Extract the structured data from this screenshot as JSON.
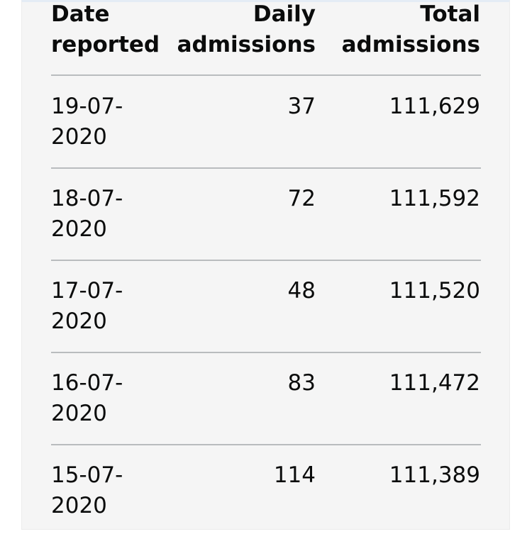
{
  "table": {
    "headers": [
      "Date reported",
      "Daily admissions",
      "Total admissions"
    ],
    "rows": [
      [
        "19-07-2020",
        "37",
        "111,629"
      ],
      [
        "18-07-2020",
        "72",
        "111,592"
      ],
      [
        "17-07-2020",
        "48",
        "111,520"
      ],
      [
        "16-07-2020",
        "83",
        "111,472"
      ],
      [
        "15-07-2020",
        "114",
        "111,389"
      ]
    ]
  }
}
